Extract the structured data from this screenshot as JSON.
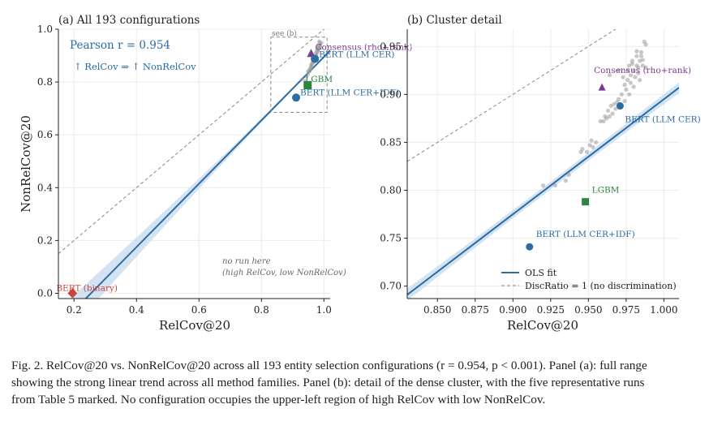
{
  "chart_data": [
    {
      "type": "scatter",
      "title": "(a) All 193 configurations",
      "xlabel": "RelCov@20",
      "ylabel": "NonRelCov@20",
      "xlim": [
        0.15,
        1.02
      ],
      "ylim": [
        -0.02,
        1.0
      ],
      "xticks": [
        0.2,
        0.4,
        0.6,
        0.8,
        1.0
      ],
      "yticks": [
        0.0,
        0.2,
        0.4,
        0.6,
        0.8,
        1.0
      ],
      "xticklabels": [
        "0.2",
        "0.4",
        "0.6",
        "0.8",
        "1.0"
      ],
      "yticklabels": [
        "0.0",
        "0.2",
        "0.4",
        "0.6",
        "0.8",
        "1.0"
      ],
      "grid": true,
      "annotations": {
        "pearson": "Pearson r = 0.954",
        "trend": "↑ RelCov ⇒ ↑ NonRelCov",
        "inset_label": "see (b)",
        "empty_region": [
          "no run here",
          "(high RelCov, low NonRelCov)"
        ]
      },
      "inset_box": {
        "x": [
          0.83,
          1.01
        ],
        "y": [
          0.685,
          0.97
        ]
      },
      "fit_line": {
        "slope": 1.2,
        "intercept": -0.305,
        "x_range": [
          0.15,
          1.02
        ]
      },
      "diagonal": {
        "label": "DiscRatio = 1 (no discrimination)"
      },
      "cluster_points": [
        [
          0.93,
          0.81
        ],
        [
          0.94,
          0.805
        ],
        [
          0.945,
          0.82
        ],
        [
          0.95,
          0.83
        ],
        [
          0.955,
          0.84
        ],
        [
          0.96,
          0.85
        ],
        [
          0.962,
          0.86
        ],
        [
          0.965,
          0.87
        ],
        [
          0.968,
          0.875
        ],
        [
          0.97,
          0.88
        ],
        [
          0.972,
          0.89
        ],
        [
          0.975,
          0.9
        ],
        [
          0.978,
          0.91
        ],
        [
          0.98,
          0.92
        ],
        [
          0.982,
          0.925
        ],
        [
          0.985,
          0.93
        ],
        [
          0.987,
          0.94
        ],
        [
          0.99,
          0.945
        ],
        [
          0.985,
          0.95
        ],
        [
          0.983,
          0.94
        ],
        [
          0.979,
          0.93
        ],
        [
          0.976,
          0.92
        ],
        [
          0.973,
          0.91
        ],
        [
          0.97,
          0.9
        ],
        [
          0.967,
          0.895
        ],
        [
          0.964,
          0.885
        ],
        [
          0.961,
          0.87
        ],
        [
          0.958,
          0.865
        ],
        [
          0.955,
          0.85
        ],
        [
          0.952,
          0.845
        ],
        [
          0.948,
          0.84
        ],
        [
          0.985,
          0.955
        ],
        [
          0.988,
          0.935
        ],
        [
          0.991,
          0.93
        ],
        [
          0.992,
          0.95
        ],
        [
          0.981,
          0.915
        ],
        [
          0.977,
          0.905
        ],
        [
          0.974,
          0.895
        ],
        [
          0.969,
          0.885
        ],
        [
          0.963,
          0.875
        ],
        [
          0.96,
          0.86
        ],
        [
          0.957,
          0.855
        ],
        [
          0.983,
          0.935
        ],
        [
          0.986,
          0.925
        ]
      ],
      "highlighted": [
        {
          "label": "Consensus (rho+rank)",
          "x": 0.959,
          "y": 0.907,
          "marker": "triangle",
          "color": "#7b3a8e"
        },
        {
          "label": "BERT (LLM CER)",
          "x": 0.971,
          "y": 0.888,
          "marker": "circle",
          "color": "#2b6ca3"
        },
        {
          "label": "LGBM",
          "x": 0.948,
          "y": 0.788,
          "marker": "square",
          "color": "#2e8540"
        },
        {
          "label": "BERT (LLM CER+IDF)",
          "x": 0.911,
          "y": 0.741,
          "marker": "circle",
          "color": "#2b6ca3"
        },
        {
          "label": "BERT (binary)",
          "x": 0.195,
          "y": 0.0,
          "marker": "diamond",
          "color": "#c9453b"
        }
      ]
    },
    {
      "type": "scatter",
      "title": "(b) Cluster detail",
      "xlabel": "RelCov@20",
      "ylabel": "",
      "xlim": [
        0.83,
        1.01
      ],
      "ylim": [
        0.687,
        0.968
      ],
      "xticks": [
        0.85,
        0.875,
        0.9,
        0.925,
        0.95,
        0.975,
        1.0
      ],
      "yticks": [
        0.7,
        0.75,
        0.8,
        0.85,
        0.9,
        0.95
      ],
      "xticklabels": [
        "0.850",
        "0.875",
        "0.900",
        "0.925",
        "0.950",
        "0.975",
        "1.000"
      ],
      "yticklabels": [
        "0.70",
        "0.75",
        "0.80",
        "0.85",
        "0.90",
        "0.95"
      ],
      "grid": true,
      "legend": {
        "position": "bottom-right",
        "entries": [
          "OLS fit",
          "DiscRatio = 1 (no discrimination)"
        ]
      },
      "fit_line": {
        "slope": 1.2,
        "intercept": -0.305,
        "x_range": [
          0.83,
          1.01
        ]
      },
      "cluster_points": [
        [
          0.92,
          0.805
        ],
        [
          0.928,
          0.805
        ],
        [
          0.935,
          0.81
        ],
        [
          0.937,
          0.816
        ],
        [
          0.945,
          0.84
        ],
        [
          0.946,
          0.843
        ],
        [
          0.951,
          0.847
        ],
        [
          0.953,
          0.845
        ],
        [
          0.955,
          0.85
        ],
        [
          0.96,
          0.872
        ],
        [
          0.962,
          0.875
        ],
        [
          0.964,
          0.877
        ],
        [
          0.966,
          0.88
        ],
        [
          0.968,
          0.885
        ],
        [
          0.97,
          0.895
        ],
        [
          0.972,
          0.9
        ],
        [
          0.974,
          0.91
        ],
        [
          0.976,
          0.915
        ],
        [
          0.978,
          0.92
        ],
        [
          0.98,
          0.925
        ],
        [
          0.982,
          0.93
        ],
        [
          0.984,
          0.935
        ],
        [
          0.985,
          0.94
        ],
        [
          0.987,
          0.955
        ],
        [
          0.982,
          0.945
        ],
        [
          0.979,
          0.935
        ],
        [
          0.976,
          0.925
        ],
        [
          0.973,
          0.918
        ],
        [
          0.975,
          0.905
        ],
        [
          0.978,
          0.912
        ],
        [
          0.981,
          0.918
        ],
        [
          0.983,
          0.922
        ],
        [
          0.986,
          0.93
        ],
        [
          0.988,
          0.928
        ],
        [
          0.984,
          0.915
        ],
        [
          0.98,
          0.908
        ],
        [
          0.977,
          0.9
        ],
        [
          0.974,
          0.893
        ],
        [
          0.971,
          0.887
        ],
        [
          0.969,
          0.892
        ],
        [
          0.967,
          0.89
        ],
        [
          0.965,
          0.888
        ],
        [
          0.963,
          0.883
        ],
        [
          0.961,
          0.877
        ],
        [
          0.985,
          0.944
        ],
        [
          0.982,
          0.94
        ],
        [
          0.979,
          0.932
        ],
        [
          0.983,
          0.928
        ],
        [
          0.986,
          0.936
        ],
        [
          0.964,
          0.92
        ],
        [
          0.97,
          0.925
        ],
        [
          0.988,
          0.952
        ],
        [
          0.977,
          0.93
        ],
        [
          0.949,
          0.84
        ],
        [
          0.952,
          0.852
        ],
        [
          0.958,
          0.872
        ]
      ],
      "highlighted": [
        {
          "label": "Consensus (rho+rank)",
          "x": 0.959,
          "y": 0.907,
          "marker": "triangle",
          "color": "#7b3a8e"
        },
        {
          "label": "BERT (LLM CER)",
          "x": 0.971,
          "y": 0.888,
          "marker": "circle",
          "color": "#2b6ca3"
        },
        {
          "label": "LGBM",
          "x": 0.948,
          "y": 0.788,
          "marker": "square",
          "color": "#2e8540"
        },
        {
          "label": "BERT (LLM CER+IDF)",
          "x": 0.911,
          "y": 0.741,
          "marker": "circle",
          "color": "#2b6ca3"
        }
      ]
    }
  ],
  "caption": {
    "line1": "Fig. 2.  RelCov@20 vs. NonRelCov@20 across all 193 entity selection configurations (r = 0.954, p < 0.001). Panel (a): full range",
    "line2": "showing the strong linear trend across all method families. Panel (b): detail of the dense cluster, with the five representative runs",
    "line3": "from Table 5 marked. No configuration occupies the upper-left region of high RelCov with low NonRelCov."
  },
  "colors": {
    "fit": "#2b6ca3",
    "band": "#c9dcef",
    "cluster": "#9a9a9a",
    "grid": "#ececec",
    "diagonal": "#888888"
  }
}
